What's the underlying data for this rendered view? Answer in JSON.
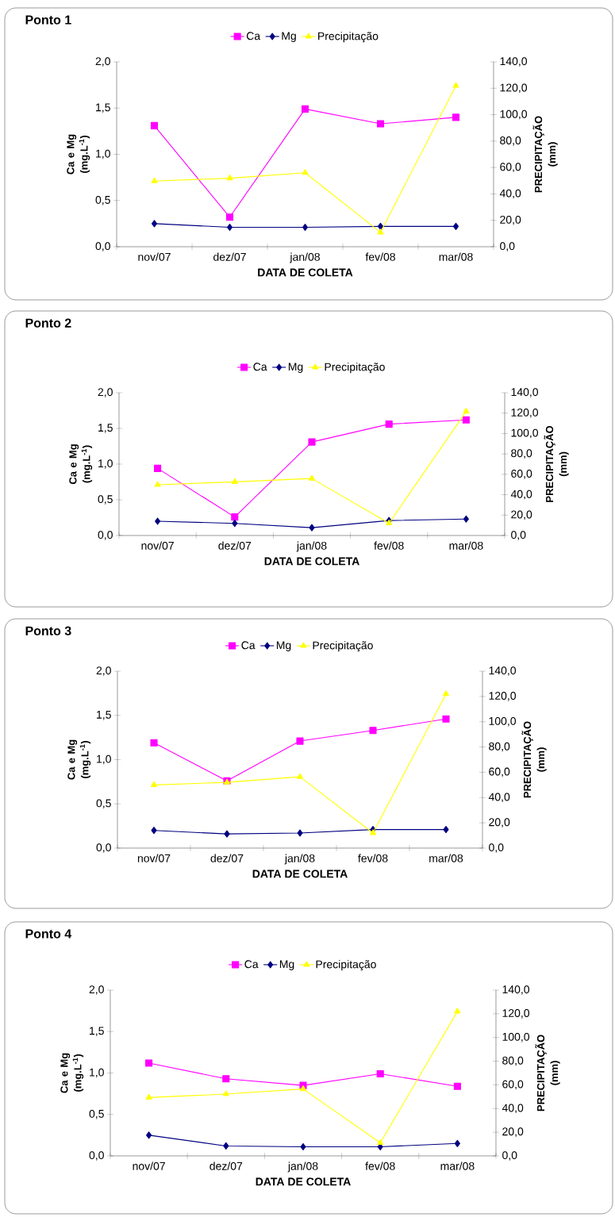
{
  "chart_data": [
    {
      "type": "line",
      "title": "Ponto 1",
      "categories": [
        "nov/07",
        "dez/07",
        "jan/08",
        "fev/08",
        "mar/08"
      ],
      "xlabel": "DATA DE COLETA",
      "ylabel": "Ca e Mg (mg.L$^{-1}$)",
      "y2label": "PRECIPITAÇÃO (mm)",
      "legend": "top",
      "series": [
        {
          "name": "Ca",
          "color": "#ff00ff",
          "marker": "square",
          "values": [
            1.31,
            0.32,
            1.49,
            1.33,
            1.4
          ]
        },
        {
          "name": "Mg",
          "color": "#000080",
          "marker": "diamond",
          "values": [
            0.25,
            0.21,
            0.21,
            0.22,
            0.22
          ]
        },
        {
          "name": "Precipitação",
          "color": "#ffff00",
          "marker": "triangle",
          "axis": "y2",
          "values": [
            49.7,
            51.9,
            56.0,
            10.9,
            122.0
          ]
        }
      ],
      "ylim": [
        0,
        2
      ],
      "yticks": [
        {
          "value": 0,
          "label": "0,0"
        },
        {
          "value": 0.5,
          "label": "0,5"
        },
        {
          "value": 1,
          "label": "1,0"
        },
        {
          "value": 1.5,
          "label": "1,5"
        },
        {
          "value": 2,
          "label": "2,0"
        }
      ],
      "y2lim": [
        0,
        140
      ],
      "y2ticks": [
        {
          "value": 0,
          "label": "0,0"
        },
        {
          "value": 20,
          "label": "20,0"
        },
        {
          "value": 40,
          "label": "40,0"
        },
        {
          "value": 60,
          "label": "60,0"
        },
        {
          "value": 80,
          "label": "80,0"
        },
        {
          "value": 100,
          "label": "100,0"
        },
        {
          "value": 120,
          "label": "120,0"
        },
        {
          "value": 140,
          "label": "140,0"
        }
      ]
    },
    {
      "type": "line",
      "title": "Ponto 2",
      "categories": [
        "nov/07",
        "dez/07",
        "jan/08",
        "fev/08",
        "mar/08"
      ],
      "xlabel": "DATA DE COLETA",
      "ylabel": "Ca e Mg (mg.L$^{-1}$)",
      "y2label": "PRECIPITAÇÃO (mm)",
      "legend": "top",
      "series": [
        {
          "name": "Ca",
          "color": "#ff00ff",
          "marker": "square",
          "values": [
            0.94,
            0.26,
            1.31,
            1.56,
            1.62
          ]
        },
        {
          "name": "Mg",
          "color": "#000080",
          "marker": "diamond",
          "values": [
            0.2,
            0.17,
            0.11,
            0.21,
            0.23
          ]
        },
        {
          "name": "Precipitação",
          "color": "#ffff00",
          "marker": "triangle",
          "axis": "y2",
          "values": [
            49.8,
            52.6,
            55.9,
            12.0,
            121.6
          ]
        }
      ],
      "ylim": [
        0,
        2
      ],
      "yticks": [
        {
          "value": 0,
          "label": "0,0"
        },
        {
          "value": 0.5,
          "label": "0,5"
        },
        {
          "value": 1,
          "label": "1,0"
        },
        {
          "value": 1.5,
          "label": "1,5"
        },
        {
          "value": 2,
          "label": "2,0"
        }
      ],
      "y2lim": [
        0,
        140
      ],
      "y2ticks": [
        {
          "value": 0,
          "label": "0,0"
        },
        {
          "value": 20,
          "label": "20,0"
        },
        {
          "value": 40,
          "label": "40,0"
        },
        {
          "value": 60,
          "label": "60,0"
        },
        {
          "value": 80,
          "label": "80,0"
        },
        {
          "value": 100,
          "label": "100,0"
        },
        {
          "value": 120,
          "label": "120,0"
        },
        {
          "value": 140,
          "label": "140,0"
        }
      ]
    },
    {
      "type": "line",
      "title": "Ponto 3",
      "categories": [
        "nov/07",
        "dez/07",
        "jan/08",
        "fev/08",
        "mar/08"
      ],
      "xlabel": "DATA DE COLETA",
      "ylabel": "Ca e Mg (mg.L$^{-1}$)",
      "y2label": "PRECIPITAÇÃO (mm)",
      "legend": "top",
      "series": [
        {
          "name": "Ca",
          "color": "#ff00ff",
          "marker": "square",
          "values": [
            1.19,
            0.76,
            1.21,
            1.33,
            1.46
          ]
        },
        {
          "name": "Mg",
          "color": "#000080",
          "marker": "diamond",
          "values": [
            0.2,
            0.16,
            0.17,
            0.21,
            0.21
          ]
        },
        {
          "name": "Precipitação",
          "color": "#ffff00",
          "marker": "triangle",
          "axis": "y2",
          "values": [
            50.0,
            52.0,
            56.4,
            11.9,
            122.0
          ]
        }
      ],
      "ylim": [
        0,
        2
      ],
      "yticks": [
        {
          "value": 0,
          "label": "0,0"
        },
        {
          "value": 0.5,
          "label": "0,5"
        },
        {
          "value": 1,
          "label": "1,0"
        },
        {
          "value": 1.5,
          "label": "1,5"
        },
        {
          "value": 2,
          "label": "2,0"
        }
      ],
      "y2lim": [
        0,
        140
      ],
      "y2ticks": [
        {
          "value": 0,
          "label": "0,0"
        },
        {
          "value": 20,
          "label": "20,0"
        },
        {
          "value": 40,
          "label": "40,0"
        },
        {
          "value": 60,
          "label": "60,0"
        },
        {
          "value": 80,
          "label": "80,0"
        },
        {
          "value": 100,
          "label": "100,0"
        },
        {
          "value": 120,
          "label": "120,0"
        },
        {
          "value": 140,
          "label": "140,0"
        }
      ]
    },
    {
      "type": "line",
      "title": "Ponto 4",
      "categories": [
        "nov/07",
        "dez/07",
        "jan/08",
        "fev/08",
        "mar/08"
      ],
      "xlabel": "DATA DE COLETA",
      "ylabel": "Ca e Mg (mg.L$^{-1}$)",
      "y2label": "PRECIPITAÇÃO (mm)",
      "legend": "top",
      "series": [
        {
          "name": "Ca",
          "color": "#ff00ff",
          "marker": "square",
          "values": [
            1.12,
            0.93,
            0.85,
            0.99,
            0.84
          ]
        },
        {
          "name": "Mg",
          "color": "#000080",
          "marker": "diamond",
          "values": [
            0.25,
            0.12,
            0.11,
            0.11,
            0.15
          ]
        },
        {
          "name": "Precipitação",
          "color": "#ffff00",
          "marker": "triangle",
          "axis": "y2",
          "values": [
            49.3,
            52.2,
            56.5,
            11.0,
            122.0
          ]
        }
      ],
      "ylim": [
        0,
        2
      ],
      "yticks": [
        {
          "value": 0,
          "label": "0,0"
        },
        {
          "value": 0.5,
          "label": "0,5"
        },
        {
          "value": 1,
          "label": "1,0"
        },
        {
          "value": 1.5,
          "label": "1,5"
        },
        {
          "value": 2,
          "label": "2,0"
        }
      ],
      "y2lim": [
        0,
        140
      ],
      "y2ticks": [
        {
          "value": 0,
          "label": "0,0"
        },
        {
          "value": 20,
          "label": "20,0"
        },
        {
          "value": 40,
          "label": "40,0"
        },
        {
          "value": 60,
          "label": "60,0"
        },
        {
          "value": 80,
          "label": "80,0"
        },
        {
          "value": 100,
          "label": "100,0"
        },
        {
          "value": 120,
          "label": "120,0"
        },
        {
          "value": 140,
          "label": "140,0"
        }
      ]
    }
  ]
}
